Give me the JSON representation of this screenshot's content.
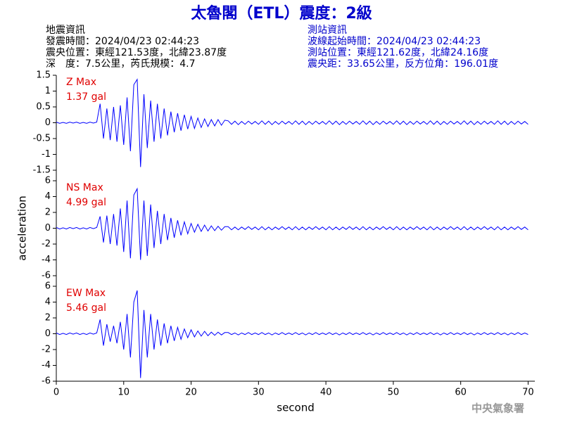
{
  "header": {
    "title": "太魯閣（ETL）震度：2級",
    "left": [
      "地震資訊",
      "發震時間：2024/04/23 02:44:23",
      "震央位置：東經121.53度，北緯23.87度",
      "深　度：7.5公里，芮氏規模：4.7"
    ],
    "right": [
      "測站資訊",
      "波線起始時間：2024/04/23 02:44:23",
      "測站位置：東經121.62度，北緯24.16度",
      "震央距：33.65公里，反方位角：196.01度"
    ]
  },
  "footer": {
    "credit": "中央氣象署"
  },
  "chart_data": [
    {
      "type": "line",
      "annotation": "1.37 gal",
      "xlim": [
        0,
        71
      ],
      "ylim": [
        -1.5,
        1.5
      ],
      "yticks": [
        -1.5,
        -1,
        -0.5,
        0,
        0.5,
        1,
        1.5
      ],
      "x": [
        0,
        0.5,
        1,
        1.5,
        2,
        2.5,
        3,
        3.5,
        4,
        4.5,
        5,
        5.5,
        6,
        6.5,
        7,
        7.5,
        8,
        8.5,
        9,
        9.5,
        10,
        10.5,
        11,
        11.5,
        12,
        12.5,
        13,
        13.5,
        14,
        14.5,
        15,
        15.5,
        16,
        16.5,
        17,
        17.5,
        18,
        18.5,
        19,
        19.5,
        20,
        20.5,
        21,
        21.5,
        22,
        22.5,
        23,
        23.5,
        24,
        24.5,
        25,
        25.5,
        26,
        26.5,
        27,
        27.5,
        28,
        28.5,
        29,
        29.5,
        30,
        30.5,
        31,
        31.5,
        32,
        32.5,
        33,
        33.5,
        34,
        34.5,
        35,
        35.5,
        36,
        36.5,
        37,
        37.5,
        38,
        38.5,
        39,
        39.5,
        40,
        40.5,
        41,
        41.5,
        42,
        42.5,
        43,
        43.5,
        44,
        44.5,
        45,
        45.5,
        46,
        46.5,
        47,
        47.5,
        48,
        48.5,
        49,
        49.5,
        50,
        50.5,
        51,
        51.5,
        52,
        52.5,
        53,
        53.5,
        54,
        54.5,
        55,
        55.5,
        56,
        56.5,
        57,
        57.5,
        58,
        58.5,
        59,
        59.5,
        60,
        60.5,
        61,
        61.5,
        62,
        62.5,
        63,
        63.5,
        64,
        64.5,
        65,
        65.5,
        66,
        66.5,
        67,
        67.5,
        68,
        68.5,
        69,
        69.5,
        70
      ],
      "series": [
        {
          "name": "Z Max",
          "color": "#0000ff",
          "values": [
            0.02,
            -0.02,
            0.01,
            -0.02,
            0.02,
            -0.01,
            0.02,
            -0.02,
            0.01,
            -0.02,
            0.02,
            -0.01,
            0.02,
            0.6,
            -0.5,
            0.45,
            -0.55,
            0.5,
            -0.6,
            0.55,
            -0.7,
            0.8,
            -0.9,
            1.2,
            1.37,
            -1.4,
            0.9,
            -0.8,
            0.7,
            -0.6,
            0.6,
            -0.5,
            0.45,
            -0.4,
            0.35,
            -0.3,
            0.3,
            -0.25,
            0.25,
            -0.2,
            0.2,
            -0.18,
            0.15,
            -0.15,
            0.12,
            -0.12,
            0.1,
            -0.1,
            0.1,
            -0.08,
            0.08,
            0.06,
            -0.05,
            0.05,
            -0.06,
            0.04,
            -0.05,
            0.05,
            -0.04,
            0.04,
            -0.05,
            0.06,
            -0.05,
            0.05,
            -0.06,
            0.04,
            -0.05,
            0.05,
            -0.04,
            0.04,
            -0.05,
            0.06,
            -0.05,
            0.05,
            -0.06,
            0.04,
            -0.05,
            0.05,
            -0.04,
            0.04,
            -0.05,
            0.06,
            -0.05,
            0.05,
            -0.06,
            0.04,
            -0.05,
            0.05,
            -0.04,
            0.04,
            -0.05,
            0.06,
            -0.05,
            0.05,
            -0.06,
            0.04,
            -0.05,
            0.05,
            -0.04,
            0.04,
            -0.05,
            0.06,
            -0.05,
            0.05,
            -0.06,
            0.04,
            -0.05,
            0.05,
            -0.04,
            0.04,
            -0.05,
            0.06,
            -0.05,
            0.05,
            -0.06,
            0.04,
            -0.05,
            0.05,
            -0.04,
            0.04,
            -0.05,
            0.06,
            -0.05,
            0.05,
            -0.06,
            0.04,
            -0.05,
            0.05,
            -0.04,
            0.04,
            -0.05,
            0.06,
            -0.05,
            0.05,
            -0.06,
            0.04,
            -0.05,
            0.05,
            -0.04,
            0.04,
            -0.05
          ]
        }
      ]
    },
    {
      "type": "line",
      "annotation": "4.99 gal",
      "ylabel": "acceleration",
      "xlim": [
        0,
        71
      ],
      "ylim": [
        -6,
        6
      ],
      "yticks": [
        -6,
        -4,
        -2,
        0,
        2,
        4,
        6
      ],
      "x": [
        0,
        0.5,
        1,
        1.5,
        2,
        2.5,
        3,
        3.5,
        4,
        4.5,
        5,
        5.5,
        6,
        6.5,
        7,
        7.5,
        8,
        8.5,
        9,
        9.5,
        10,
        10.5,
        11,
        11.5,
        12,
        12.5,
        13,
        13.5,
        14,
        14.5,
        15,
        15.5,
        16,
        16.5,
        17,
        17.5,
        18,
        18.5,
        19,
        19.5,
        20,
        20.5,
        21,
        21.5,
        22,
        22.5,
        23,
        23.5,
        24,
        24.5,
        25,
        25.5,
        26,
        26.5,
        27,
        27.5,
        28,
        28.5,
        29,
        29.5,
        30,
        30.5,
        31,
        31.5,
        32,
        32.5,
        33,
        33.5,
        34,
        34.5,
        35,
        35.5,
        36,
        36.5,
        37,
        37.5,
        38,
        38.5,
        39,
        39.5,
        40,
        40.5,
        41,
        41.5,
        42,
        42.5,
        43,
        43.5,
        44,
        44.5,
        45,
        45.5,
        46,
        46.5,
        47,
        47.5,
        48,
        48.5,
        49,
        49.5,
        50,
        50.5,
        51,
        51.5,
        52,
        52.5,
        53,
        53.5,
        54,
        54.5,
        55,
        55.5,
        56,
        56.5,
        57,
        57.5,
        58,
        58.5,
        59,
        59.5,
        60,
        60.5,
        61,
        61.5,
        62,
        62.5,
        63,
        63.5,
        64,
        64.5,
        65,
        65.5,
        66,
        66.5,
        67,
        67.5,
        68,
        68.5,
        69,
        69.5,
        70
      ],
      "series": [
        {
          "name": "NS Max",
          "color": "#0000ff",
          "values": [
            0.1,
            -0.1,
            0.05,
            -0.1,
            0.1,
            -0.05,
            0.1,
            -0.1,
            0.05,
            -0.1,
            0.1,
            -0.05,
            0.1,
            1.5,
            -1.8,
            1.6,
            -2,
            1.8,
            -2.2,
            2.5,
            -3,
            3.5,
            -3.8,
            4.2,
            4.99,
            -4,
            3.5,
            -3.5,
            3,
            -2.5,
            2.2,
            -2,
            1.8,
            -1.5,
            1.3,
            -1.2,
            1,
            -0.9,
            0.8,
            -0.7,
            0.6,
            -0.5,
            0.5,
            -0.4,
            0.4,
            -0.35,
            0.3,
            -0.3,
            0.25,
            -0.25,
            0.2,
            0.2,
            -0.2,
            0.15,
            -0.2,
            0.15,
            -0.15,
            0.2,
            -0.15,
            0.15,
            -0.2,
            0.2,
            -0.2,
            0.15,
            -0.2,
            0.15,
            -0.15,
            0.2,
            -0.15,
            0.15,
            -0.2,
            0.2,
            -0.2,
            0.15,
            -0.2,
            0.15,
            -0.15,
            0.2,
            -0.15,
            0.15,
            -0.2,
            0.2,
            -0.2,
            0.15,
            -0.2,
            0.15,
            -0.15,
            0.2,
            -0.15,
            0.15,
            -0.2,
            0.2,
            -0.2,
            0.15,
            -0.2,
            0.15,
            -0.15,
            0.2,
            -0.15,
            0.15,
            -0.2,
            0.2,
            -0.2,
            0.15,
            -0.2,
            0.15,
            -0.15,
            0.2,
            -0.15,
            0.15,
            -0.2,
            0.2,
            -0.2,
            0.15,
            -0.2,
            0.15,
            -0.15,
            0.2,
            -0.15,
            0.15,
            -0.2,
            0.2,
            -0.2,
            0.15,
            -0.2,
            0.15,
            -0.15,
            0.2,
            -0.15,
            0.15,
            -0.2,
            0.2,
            -0.2,
            0.15,
            -0.2,
            0.15,
            -0.15,
            0.2,
            -0.15,
            0.15,
            -0.2
          ]
        }
      ]
    },
    {
      "type": "line",
      "annotation": "5.46 gal",
      "xlabel": "second",
      "xlim": [
        0,
        71
      ],
      "xticks": [
        0,
        10,
        20,
        30,
        40,
        50,
        60,
        70
      ],
      "ylim": [
        -6,
        6
      ],
      "yticks": [
        -6,
        -4,
        -2,
        0,
        2,
        4,
        6
      ],
      "x": [
        0,
        0.5,
        1,
        1.5,
        2,
        2.5,
        3,
        3.5,
        4,
        4.5,
        5,
        5.5,
        6,
        6.5,
        7,
        7.5,
        8,
        8.5,
        9,
        9.5,
        10,
        10.5,
        11,
        11.5,
        12,
        12.5,
        13,
        13.5,
        14,
        14.5,
        15,
        15.5,
        16,
        16.5,
        17,
        17.5,
        18,
        18.5,
        19,
        19.5,
        20,
        20.5,
        21,
        21.5,
        22,
        22.5,
        23,
        23.5,
        24,
        24.5,
        25,
        25.5,
        26,
        26.5,
        27,
        27.5,
        28,
        28.5,
        29,
        29.5,
        30,
        30.5,
        31,
        31.5,
        32,
        32.5,
        33,
        33.5,
        34,
        34.5,
        35,
        35.5,
        36,
        36.5,
        37,
        37.5,
        38,
        38.5,
        39,
        39.5,
        40,
        40.5,
        41,
        41.5,
        42,
        42.5,
        43,
        43.5,
        44,
        44.5,
        45,
        45.5,
        46,
        46.5,
        47,
        47.5,
        48,
        48.5,
        49,
        49.5,
        50,
        50.5,
        51,
        51.5,
        52,
        52.5,
        53,
        53.5,
        54,
        54.5,
        55,
        55.5,
        56,
        56.5,
        57,
        57.5,
        58,
        58.5,
        59,
        59.5,
        60,
        60.5,
        61,
        61.5,
        62,
        62.5,
        63,
        63.5,
        64,
        64.5,
        65,
        65.5,
        66,
        66.5,
        67,
        67.5,
        68,
        68.5,
        69,
        69.5,
        70
      ],
      "series": [
        {
          "name": "EW Max",
          "color": "#0000ff",
          "values": [
            0.1,
            -0.1,
            0.05,
            -0.1,
            0.1,
            -0.05,
            0.1,
            -0.1,
            0.05,
            -0.1,
            0.1,
            -0.05,
            0.1,
            1.8,
            -1.5,
            1.2,
            -1,
            1,
            -1.2,
            1.5,
            -2,
            2.5,
            -3,
            4,
            5.46,
            -5.6,
            3,
            -3,
            2.5,
            -2,
            1.8,
            -1.5,
            1.3,
            -1.2,
            1,
            -0.9,
            0.8,
            -0.7,
            0.6,
            -0.5,
            0.5,
            -0.4,
            0.35,
            -0.3,
            0.3,
            -0.25,
            0.2,
            -0.2,
            0.2,
            -0.15,
            0.15,
            0.15,
            -0.1,
            0.1,
            -0.15,
            0.1,
            -0.1,
            0.15,
            -0.1,
            0.1,
            -0.1,
            0.15,
            -0.1,
            0.1,
            -0.15,
            0.1,
            -0.1,
            0.15,
            -0.1,
            0.1,
            -0.1,
            0.15,
            -0.1,
            0.1,
            -0.15,
            0.1,
            -0.1,
            0.15,
            -0.1,
            0.1,
            -0.1,
            0.15,
            -0.1,
            0.1,
            -0.15,
            0.1,
            -0.1,
            0.15,
            -0.1,
            0.1,
            -0.1,
            0.15,
            -0.1,
            0.1,
            -0.15,
            0.1,
            -0.1,
            0.15,
            -0.1,
            0.1,
            -0.1,
            0.15,
            -0.1,
            0.1,
            -0.15,
            0.1,
            -0.1,
            0.15,
            -0.1,
            0.1,
            -0.1,
            0.15,
            -0.1,
            0.1,
            -0.15,
            0.1,
            -0.1,
            0.15,
            -0.1,
            0.1,
            -0.1,
            0.15,
            -0.1,
            0.1,
            -0.15,
            0.1,
            -0.1,
            0.15,
            -0.1,
            0.1,
            -0.1,
            0.15,
            -0.1,
            0.1,
            -0.15,
            0.1,
            -0.1,
            0.15,
            -0.1,
            0.1,
            -0.1
          ]
        }
      ]
    }
  ]
}
